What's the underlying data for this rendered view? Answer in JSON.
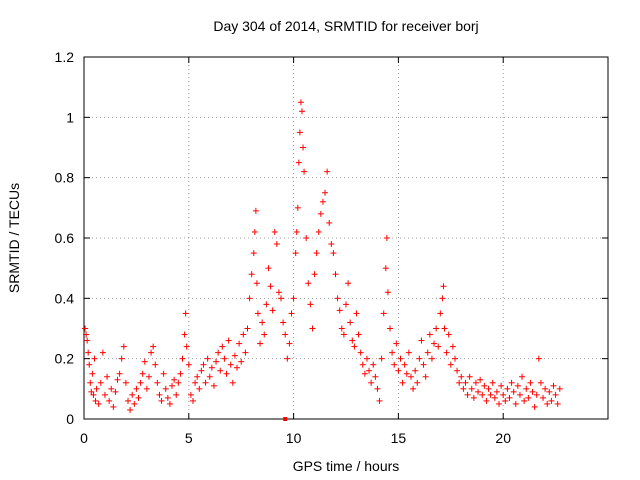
{
  "chart_data": {
    "type": "scatter",
    "title": "Day 304 of 2014, SRMTID for receiver borj",
    "xlabel": "GPS time / hours",
    "ylabel": "SRMTID / TECUs",
    "xlim": [
      0,
      25
    ],
    "ylim": [
      0,
      1.2
    ],
    "xticks": [
      0,
      5,
      10,
      15,
      20
    ],
    "xtick_labels": [
      "0",
      "5",
      "10",
      "15",
      "20"
    ],
    "yticks": [
      0,
      0.2,
      0.4,
      0.6,
      0.8,
      1,
      1.2
    ],
    "ytick_labels": [
      "0",
      "0.2",
      "0.4",
      "0.6",
      "0.8",
      "1",
      "1.2"
    ],
    "grid": true,
    "marker": "+",
    "color": "#ff0000",
    "series": [
      {
        "name": "SRMTID",
        "points": [
          [
            0.05,
            0.3
          ],
          [
            0.1,
            0.28
          ],
          [
            0.15,
            0.26
          ],
          [
            0.2,
            0.22
          ],
          [
            0.25,
            0.18
          ],
          [
            0.3,
            0.12
          ],
          [
            0.35,
            0.09
          ],
          [
            0.4,
            0.15
          ],
          [
            0.45,
            0.08
          ],
          [
            0.5,
            0.2
          ],
          [
            0.55,
            0.06
          ],
          [
            0.6,
            0.1
          ],
          [
            0.7,
            0.05
          ],
          [
            0.8,
            0.12
          ],
          [
            0.9,
            0.22
          ],
          [
            1.0,
            0.08
          ],
          [
            1.1,
            0.14
          ],
          [
            1.2,
            0.06
          ],
          [
            1.3,
            0.1
          ],
          [
            1.4,
            0.04
          ],
          [
            1.5,
            0.09
          ],
          [
            1.6,
            0.13
          ],
          [
            1.7,
            0.15
          ],
          [
            1.8,
            0.2
          ],
          [
            1.9,
            0.24
          ],
          [
            2.0,
            0.12
          ],
          [
            2.1,
            0.06
          ],
          [
            2.2,
            0.03
          ],
          [
            2.3,
            0.08
          ],
          [
            2.4,
            0.05
          ],
          [
            2.5,
            0.1
          ],
          [
            2.6,
            0.07
          ],
          [
            2.7,
            0.12
          ],
          [
            2.8,
            0.15
          ],
          [
            2.9,
            0.19
          ],
          [
            3.0,
            0.1
          ],
          [
            3.1,
            0.14
          ],
          [
            3.2,
            0.22
          ],
          [
            3.3,
            0.24
          ],
          [
            3.4,
            0.18
          ],
          [
            3.5,
            0.12
          ],
          [
            3.6,
            0.08
          ],
          [
            3.7,
            0.06
          ],
          [
            3.8,
            0.15
          ],
          [
            3.9,
            0.1
          ],
          [
            4.0,
            0.07
          ],
          [
            4.1,
            0.05
          ],
          [
            4.2,
            0.11
          ],
          [
            4.3,
            0.13
          ],
          [
            4.4,
            0.08
          ],
          [
            4.5,
            0.12
          ],
          [
            4.6,
            0.15
          ],
          [
            4.7,
            0.2
          ],
          [
            4.8,
            0.28
          ],
          [
            4.85,
            0.35
          ],
          [
            4.9,
            0.24
          ],
          [
            5.0,
            0.18
          ],
          [
            5.1,
            0.08
          ],
          [
            5.2,
            0.06
          ],
          [
            5.3,
            0.12
          ],
          [
            5.4,
            0.14
          ],
          [
            5.5,
            0.1
          ],
          [
            5.6,
            0.16
          ],
          [
            5.7,
            0.18
          ],
          [
            5.8,
            0.12
          ],
          [
            5.9,
            0.2
          ],
          [
            6.0,
            0.14
          ],
          [
            6.1,
            0.17
          ],
          [
            6.2,
            0.11
          ],
          [
            6.3,
            0.19
          ],
          [
            6.4,
            0.22
          ],
          [
            6.5,
            0.16
          ],
          [
            6.6,
            0.24
          ],
          [
            6.7,
            0.2
          ],
          [
            6.8,
            0.15
          ],
          [
            6.9,
            0.26
          ],
          [
            7.0,
            0.18
          ],
          [
            7.1,
            0.12
          ],
          [
            7.2,
            0.21
          ],
          [
            7.3,
            0.17
          ],
          [
            7.4,
            0.25
          ],
          [
            7.5,
            0.19
          ],
          [
            7.6,
            0.28
          ],
          [
            7.7,
            0.22
          ],
          [
            7.8,
            0.3
          ],
          [
            7.9,
            0.4
          ],
          [
            8.0,
            0.48
          ],
          [
            8.1,
            0.55
          ],
          [
            8.15,
            0.62
          ],
          [
            8.2,
            0.69
          ],
          [
            8.25,
            0.45
          ],
          [
            8.3,
            0.35
          ],
          [
            8.4,
            0.25
          ],
          [
            8.5,
            0.32
          ],
          [
            8.6,
            0.28
          ],
          [
            8.7,
            0.38
          ],
          [
            8.8,
            0.5
          ],
          [
            8.9,
            0.44
          ],
          [
            9.0,
            0.36
          ],
          [
            9.1,
            0.62
          ],
          [
            9.2,
            0.58
          ],
          [
            9.3,
            0.42
          ],
          [
            9.4,
            0.4
          ],
          [
            9.5,
            0.32
          ],
          [
            9.6,
            0.28
          ],
          [
            9.7,
            0.2
          ],
          [
            9.8,
            0.25
          ],
          [
            9.9,
            0.35
          ],
          [
            10.0,
            0.4
          ],
          [
            10.1,
            0.55
          ],
          [
            10.15,
            0.62
          ],
          [
            10.2,
            0.7
          ],
          [
            10.25,
            0.85
          ],
          [
            10.3,
            0.95
          ],
          [
            10.35,
            1.05
          ],
          [
            10.4,
            1.02
          ],
          [
            10.45,
            0.9
          ],
          [
            10.5,
            0.82
          ],
          [
            10.6,
            0.6
          ],
          [
            10.7,
            0.45
          ],
          [
            10.8,
            0.38
          ],
          [
            10.9,
            0.3
          ],
          [
            11.0,
            0.48
          ],
          [
            11.1,
            0.55
          ],
          [
            11.2,
            0.62
          ],
          [
            11.3,
            0.68
          ],
          [
            11.4,
            0.72
          ],
          [
            11.5,
            0.75
          ],
          [
            11.6,
            0.82
          ],
          [
            11.7,
            0.65
          ],
          [
            11.8,
            0.58
          ],
          [
            11.9,
            0.55
          ],
          [
            12.0,
            0.48
          ],
          [
            12.1,
            0.4
          ],
          [
            12.2,
            0.36
          ],
          [
            12.3,
            0.3
          ],
          [
            12.4,
            0.28
          ],
          [
            12.5,
            0.38
          ],
          [
            12.6,
            0.45
          ],
          [
            12.7,
            0.32
          ],
          [
            12.8,
            0.26
          ],
          [
            12.9,
            0.24
          ],
          [
            13.0,
            0.35
          ],
          [
            13.1,
            0.28
          ],
          [
            13.2,
            0.22
          ],
          [
            13.3,
            0.18
          ],
          [
            13.4,
            0.15
          ],
          [
            13.5,
            0.2
          ],
          [
            13.6,
            0.16
          ],
          [
            13.7,
            0.12
          ],
          [
            13.8,
            0.18
          ],
          [
            13.9,
            0.14
          ],
          [
            14.0,
            0.1
          ],
          [
            14.1,
            0.06
          ],
          [
            14.2,
            0.2
          ],
          [
            14.3,
            0.35
          ],
          [
            14.4,
            0.5
          ],
          [
            14.45,
            0.6
          ],
          [
            14.5,
            0.42
          ],
          [
            14.6,
            0.3
          ],
          [
            14.7,
            0.22
          ],
          [
            14.8,
            0.18
          ],
          [
            14.9,
            0.25
          ],
          [
            15.0,
            0.16
          ],
          [
            15.1,
            0.2
          ],
          [
            15.2,
            0.12
          ],
          [
            15.3,
            0.18
          ],
          [
            15.4,
            0.15
          ],
          [
            15.5,
            0.22
          ],
          [
            15.6,
            0.14
          ],
          [
            15.7,
            0.1
          ],
          [
            15.8,
            0.16
          ],
          [
            15.9,
            0.12
          ],
          [
            16.0,
            0.2
          ],
          [
            16.1,
            0.26
          ],
          [
            16.2,
            0.18
          ],
          [
            16.3,
            0.14
          ],
          [
            16.4,
            0.22
          ],
          [
            16.5,
            0.28
          ],
          [
            16.6,
            0.2
          ],
          [
            16.7,
            0.25
          ],
          [
            16.8,
            0.3
          ],
          [
            16.9,
            0.24
          ],
          [
            17.0,
            0.35
          ],
          [
            17.1,
            0.4
          ],
          [
            17.15,
            0.44
          ],
          [
            17.2,
            0.3
          ],
          [
            17.3,
            0.22
          ],
          [
            17.4,
            0.28
          ],
          [
            17.5,
            0.18
          ],
          [
            17.6,
            0.24
          ],
          [
            17.7,
            0.2
          ],
          [
            17.8,
            0.16
          ],
          [
            17.9,
            0.12
          ],
          [
            18.0,
            0.14
          ],
          [
            18.1,
            0.1
          ],
          [
            18.2,
            0.12
          ],
          [
            18.3,
            0.08
          ],
          [
            18.4,
            0.14
          ],
          [
            18.5,
            0.1
          ],
          [
            18.6,
            0.07
          ],
          [
            18.7,
            0.12
          ],
          [
            18.8,
            0.09
          ],
          [
            18.9,
            0.13
          ],
          [
            19.0,
            0.08
          ],
          [
            19.1,
            0.11
          ],
          [
            19.2,
            0.06
          ],
          [
            19.3,
            0.1
          ],
          [
            19.4,
            0.08
          ],
          [
            19.5,
            0.12
          ],
          [
            19.6,
            0.07
          ],
          [
            19.7,
            0.09
          ],
          [
            19.8,
            0.05
          ],
          [
            19.9,
            0.11
          ],
          [
            20.0,
            0.08
          ],
          [
            20.1,
            0.06
          ],
          [
            20.2,
            0.1
          ],
          [
            20.3,
            0.07
          ],
          [
            20.4,
            0.12
          ],
          [
            20.5,
            0.09
          ],
          [
            20.6,
            0.05
          ],
          [
            20.7,
            0.11
          ],
          [
            20.8,
            0.08
          ],
          [
            20.9,
            0.14
          ],
          [
            21.0,
            0.06
          ],
          [
            21.1,
            0.1
          ],
          [
            21.2,
            0.07
          ],
          [
            21.3,
            0.12
          ],
          [
            21.4,
            0.09
          ],
          [
            21.5,
            0.04
          ],
          [
            21.6,
            0.08
          ],
          [
            21.7,
            0.2
          ],
          [
            21.8,
            0.12
          ],
          [
            21.9,
            0.07
          ],
          [
            22.0,
            0.1
          ],
          [
            22.1,
            0.05
          ],
          [
            22.2,
            0.09
          ],
          [
            22.3,
            0.06
          ],
          [
            22.4,
            0.11
          ],
          [
            22.5,
            0.08
          ],
          [
            22.6,
            0.05
          ],
          [
            22.7,
            0.1
          ]
        ]
      }
    ],
    "markers": [
      {
        "name": "square",
        "x": 9.6,
        "y": 0.0
      }
    ]
  }
}
